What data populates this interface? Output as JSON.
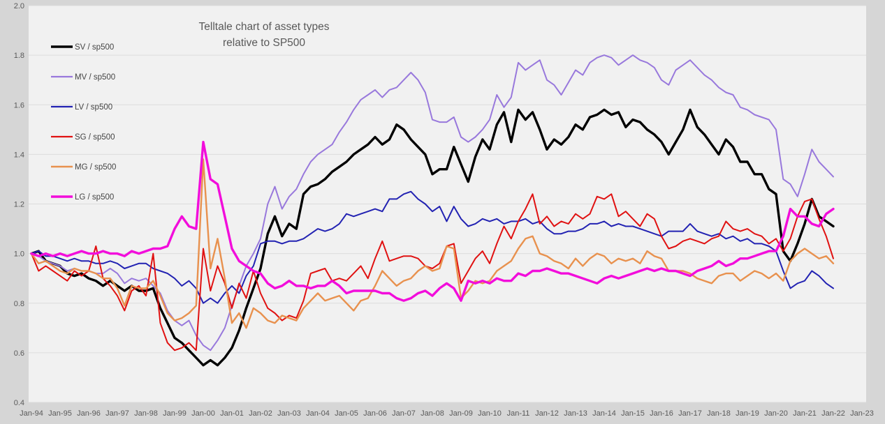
{
  "title": {
    "line1": "Telltale chart of asset types",
    "line2": "relative to SP500"
  },
  "colors": {
    "outer_background": "#d6d6d6",
    "plot_background": "#f1f1f1",
    "gridline": "#dcdcdc",
    "axis_text": "#595959",
    "title_text": "#595959",
    "legend_text": "#444444"
  },
  "chart_data": {
    "type": "line",
    "title": "Telltale chart of asset types relative to SP500",
    "xlabel": "",
    "ylabel": "",
    "ylim": [
      0.4,
      2.0
    ],
    "y_tick_step": 0.2,
    "y_ticks": [
      "0.4",
      "0.6",
      "0.8",
      "1.0",
      "1.2",
      "1.4",
      "1.6",
      "1.8",
      "2.0"
    ],
    "x_ticks": [
      "Jan-94",
      "Jan-95",
      "Jan-96",
      "Jan-97",
      "Jan-98",
      "Jan-99",
      "Jan-00",
      "Jan-01",
      "Jan-02",
      "Jan-03",
      "Jan-04",
      "Jan-05",
      "Jan-06",
      "Jan-07",
      "Jan-08",
      "Jan-09",
      "Jan-10",
      "Jan-11",
      "Jan-12",
      "Jan-13",
      "Jan-14",
      "Jan-15",
      "Jan-16",
      "Jan-17",
      "Jan-18",
      "Jan-19",
      "Jan-20",
      "Jan-21",
      "Jan-22",
      "Jan-23"
    ],
    "grid": "horizontal",
    "legend_position": "upper-left-inside",
    "x_start": 1994,
    "x_step": 0.25,
    "series": [
      {
        "name": "SV / sp500",
        "color": "#000000",
        "width": 3.4,
        "values": [
          1.0,
          1.01,
          0.97,
          0.96,
          0.95,
          0.92,
          0.91,
          0.92,
          0.9,
          0.89,
          0.87,
          0.89,
          0.87,
          0.85,
          0.87,
          0.85,
          0.85,
          0.86,
          0.78,
          0.72,
          0.66,
          0.64,
          0.61,
          0.58,
          0.55,
          0.57,
          0.55,
          0.58,
          0.62,
          0.69,
          0.78,
          0.86,
          0.94,
          1.08,
          1.15,
          1.07,
          1.12,
          1.1,
          1.24,
          1.27,
          1.28,
          1.3,
          1.33,
          1.35,
          1.37,
          1.4,
          1.42,
          1.44,
          1.47,
          1.44,
          1.46,
          1.52,
          1.5,
          1.46,
          1.43,
          1.4,
          1.32,
          1.34,
          1.34,
          1.43,
          1.36,
          1.29,
          1.39,
          1.46,
          1.42,
          1.52,
          1.57,
          1.45,
          1.58,
          1.54,
          1.57,
          1.5,
          1.42,
          1.46,
          1.44,
          1.47,
          1.52,
          1.5,
          1.55,
          1.56,
          1.58,
          1.56,
          1.57,
          1.51,
          1.54,
          1.53,
          1.5,
          1.48,
          1.45,
          1.4,
          1.45,
          1.5,
          1.58,
          1.51,
          1.48,
          1.44,
          1.4,
          1.46,
          1.43,
          1.37,
          1.37,
          1.32,
          1.32,
          1.26,
          1.24,
          1.01,
          0.97,
          1.04,
          1.12,
          1.22,
          1.15,
          1.13,
          1.11
        ]
      },
      {
        "name": "MV / sp500",
        "color": "#9878dc",
        "width": 2.0,
        "values": [
          1.0,
          0.99,
          0.97,
          0.96,
          0.95,
          0.93,
          0.94,
          0.93,
          0.93,
          0.92,
          0.92,
          0.94,
          0.92,
          0.88,
          0.9,
          0.89,
          0.9,
          0.87,
          0.84,
          0.77,
          0.73,
          0.71,
          0.73,
          0.67,
          0.63,
          0.61,
          0.65,
          0.7,
          0.79,
          0.87,
          0.95,
          1.0,
          1.06,
          1.2,
          1.27,
          1.18,
          1.23,
          1.26,
          1.32,
          1.37,
          1.4,
          1.42,
          1.44,
          1.49,
          1.53,
          1.58,
          1.62,
          1.64,
          1.66,
          1.63,
          1.66,
          1.67,
          1.7,
          1.73,
          1.7,
          1.65,
          1.54,
          1.53,
          1.53,
          1.55,
          1.47,
          1.45,
          1.47,
          1.5,
          1.54,
          1.64,
          1.59,
          1.63,
          1.77,
          1.74,
          1.76,
          1.78,
          1.7,
          1.68,
          1.64,
          1.69,
          1.74,
          1.72,
          1.77,
          1.79,
          1.8,
          1.79,
          1.76,
          1.78,
          1.8,
          1.78,
          1.77,
          1.75,
          1.7,
          1.68,
          1.74,
          1.76,
          1.78,
          1.75,
          1.72,
          1.7,
          1.67,
          1.65,
          1.64,
          1.59,
          1.58,
          1.56,
          1.55,
          1.54,
          1.5,
          1.3,
          1.28,
          1.23,
          1.32,
          1.42,
          1.37,
          1.34,
          1.31
        ]
      },
      {
        "name": "LV / sp500",
        "color": "#2222b2",
        "width": 2.0,
        "values": [
          1.0,
          1.01,
          0.99,
          0.99,
          0.98,
          0.97,
          0.98,
          0.97,
          0.97,
          0.96,
          0.96,
          0.97,
          0.96,
          0.94,
          0.95,
          0.96,
          0.96,
          0.94,
          0.93,
          0.92,
          0.9,
          0.87,
          0.89,
          0.86,
          0.8,
          0.82,
          0.8,
          0.84,
          0.87,
          0.84,
          0.91,
          0.95,
          1.04,
          1.05,
          1.05,
          1.04,
          1.05,
          1.05,
          1.06,
          1.08,
          1.1,
          1.09,
          1.1,
          1.12,
          1.16,
          1.15,
          1.16,
          1.17,
          1.18,
          1.17,
          1.22,
          1.22,
          1.24,
          1.25,
          1.22,
          1.2,
          1.17,
          1.19,
          1.13,
          1.19,
          1.14,
          1.11,
          1.12,
          1.14,
          1.13,
          1.14,
          1.12,
          1.13,
          1.13,
          1.14,
          1.12,
          1.13,
          1.1,
          1.08,
          1.08,
          1.09,
          1.09,
          1.1,
          1.12,
          1.12,
          1.13,
          1.11,
          1.12,
          1.11,
          1.11,
          1.1,
          1.09,
          1.08,
          1.07,
          1.09,
          1.09,
          1.09,
          1.12,
          1.09,
          1.08,
          1.07,
          1.08,
          1.06,
          1.07,
          1.05,
          1.06,
          1.04,
          1.04,
          1.03,
          1.01,
          0.93,
          0.86,
          0.88,
          0.89,
          0.93,
          0.91,
          0.88,
          0.86
        ]
      },
      {
        "name": "SG / sp500",
        "color": "#e01111",
        "width": 2.0,
        "values": [
          1.0,
          0.93,
          0.95,
          0.93,
          0.91,
          0.89,
          0.93,
          0.91,
          0.93,
          1.03,
          0.9,
          0.87,
          0.83,
          0.77,
          0.85,
          0.87,
          0.83,
          1.0,
          0.72,
          0.64,
          0.61,
          0.62,
          0.64,
          0.61,
          1.02,
          0.85,
          0.95,
          0.88,
          0.78,
          0.88,
          0.82,
          0.93,
          0.84,
          0.78,
          0.76,
          0.73,
          0.75,
          0.74,
          0.81,
          0.92,
          0.93,
          0.94,
          0.89,
          0.9,
          0.89,
          0.92,
          0.95,
          0.9,
          0.98,
          1.05,
          0.97,
          0.98,
          0.99,
          0.99,
          0.98,
          0.95,
          0.94,
          0.96,
          1.03,
          1.04,
          0.88,
          0.93,
          0.98,
          1.01,
          0.96,
          1.04,
          1.11,
          1.06,
          1.13,
          1.18,
          1.24,
          1.12,
          1.15,
          1.11,
          1.13,
          1.12,
          1.16,
          1.14,
          1.16,
          1.23,
          1.22,
          1.24,
          1.15,
          1.17,
          1.14,
          1.11,
          1.16,
          1.14,
          1.07,
          1.02,
          1.03,
          1.05,
          1.06,
          1.05,
          1.04,
          1.06,
          1.07,
          1.13,
          1.1,
          1.09,
          1.1,
          1.08,
          1.07,
          1.04,
          1.06,
          1.01,
          1.06,
          1.15,
          1.21,
          1.22,
          1.14,
          1.07,
          0.98
        ]
      },
      {
        "name": "MG / sp500",
        "color": "#e8914e",
        "width": 2.4,
        "values": [
          1.0,
          0.96,
          0.97,
          0.95,
          0.93,
          0.92,
          0.94,
          0.93,
          0.93,
          0.92,
          0.9,
          0.9,
          0.86,
          0.79,
          0.87,
          0.86,
          0.86,
          0.89,
          0.83,
          0.76,
          0.73,
          0.74,
          0.76,
          0.79,
          1.38,
          0.94,
          1.06,
          0.9,
          0.72,
          0.76,
          0.7,
          0.78,
          0.76,
          0.73,
          0.72,
          0.75,
          0.74,
          0.73,
          0.78,
          0.81,
          0.84,
          0.81,
          0.82,
          0.83,
          0.8,
          0.77,
          0.81,
          0.82,
          0.87,
          0.93,
          0.9,
          0.87,
          0.89,
          0.9,
          0.93,
          0.95,
          0.93,
          0.94,
          1.03,
          1.02,
          0.82,
          0.85,
          0.89,
          0.88,
          0.89,
          0.93,
          0.95,
          0.97,
          1.02,
          1.06,
          1.07,
          1.0,
          0.99,
          0.97,
          0.96,
          0.94,
          0.98,
          0.95,
          0.98,
          1.0,
          0.99,
          0.96,
          0.98,
          0.97,
          0.98,
          0.96,
          1.01,
          0.99,
          0.98,
          0.93,
          0.93,
          0.93,
          0.92,
          0.9,
          0.89,
          0.88,
          0.91,
          0.92,
          0.92,
          0.89,
          0.91,
          0.93,
          0.92,
          0.9,
          0.92,
          0.89,
          0.97,
          1.0,
          1.02,
          1.0,
          0.98,
          0.99,
          0.96
        ]
      },
      {
        "name": "LG / sp500",
        "color": "#f20ddb",
        "width": 3.4,
        "values": [
          1.0,
          0.99,
          1.0,
          0.99,
          1.0,
          0.99,
          1.0,
          1.01,
          1.0,
          1.0,
          1.01,
          1.0,
          1.0,
          0.99,
          1.01,
          1.0,
          1.01,
          1.02,
          1.02,
          1.03,
          1.1,
          1.15,
          1.11,
          1.1,
          1.45,
          1.3,
          1.28,
          1.15,
          1.02,
          0.97,
          0.95,
          0.93,
          0.92,
          0.88,
          0.86,
          0.87,
          0.89,
          0.87,
          0.87,
          0.86,
          0.87,
          0.87,
          0.89,
          0.87,
          0.84,
          0.85,
          0.85,
          0.85,
          0.85,
          0.84,
          0.84,
          0.82,
          0.81,
          0.82,
          0.84,
          0.85,
          0.83,
          0.86,
          0.88,
          0.86,
          0.81,
          0.89,
          0.88,
          0.89,
          0.88,
          0.9,
          0.89,
          0.89,
          0.92,
          0.91,
          0.93,
          0.93,
          0.94,
          0.93,
          0.92,
          0.92,
          0.91,
          0.9,
          0.89,
          0.88,
          0.9,
          0.91,
          0.9,
          0.91,
          0.92,
          0.93,
          0.94,
          0.93,
          0.94,
          0.93,
          0.93,
          0.92,
          0.91,
          0.93,
          0.94,
          0.95,
          0.97,
          0.95,
          0.96,
          0.98,
          0.98,
          0.99,
          1.0,
          1.01,
          1.01,
          1.07,
          1.18,
          1.15,
          1.15,
          1.12,
          1.11,
          1.16,
          1.18
        ]
      }
    ]
  }
}
